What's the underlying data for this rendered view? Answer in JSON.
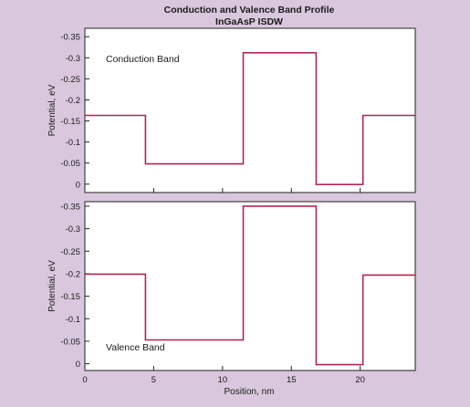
{
  "chart_data": {
    "type": "line",
    "title": "Conduction and Valence Band Profile",
    "subtitle": "InGaAsP ISDW",
    "xlabel": "Position, nm",
    "xlim": [
      0,
      24
    ],
    "x_ticks": [
      0,
      5,
      10,
      15,
      20
    ],
    "line_color": "#b0284f",
    "panels": [
      {
        "label": "Conduction Band",
        "ylabel": "Potential, eV",
        "ylim": [
          0.02,
          -0.37
        ],
        "y_ticks": [
          {
            "value": -0.35,
            "label": "-0.35"
          },
          {
            "value": -0.3,
            "label": "-0.3"
          },
          {
            "value": -0.25,
            "label": "-0.25"
          },
          {
            "value": -0.2,
            "label": "-0.2"
          },
          {
            "value": -0.15,
            "label": "-0.15"
          },
          {
            "value": -0.1,
            "label": "-0.1"
          },
          {
            "value": -0.05,
            "label": "-0.05"
          },
          {
            "value": 0,
            "label": "0"
          }
        ],
        "series": [
          {
            "x": [
              0,
              4.4,
              4.4,
              11.5,
              11.5,
              16.8,
              16.8,
              20.2,
              20.2,
              24
            ],
            "y": [
              -0.163,
              -0.163,
              -0.048,
              -0.048,
              -0.312,
              -0.312,
              0.001,
              0.001,
              -0.163,
              -0.163
            ]
          }
        ]
      },
      {
        "label": "Valence Band",
        "ylabel": "Potential, eV",
        "ylim": [
          0.015,
          -0.36
        ],
        "y_ticks": [
          {
            "value": 0,
            "label": "0"
          },
          {
            "value": -0.05,
            "label": "-0.05"
          },
          {
            "value": -0.1,
            "label": "-0.1"
          },
          {
            "value": -0.15,
            "label": "-0.15"
          },
          {
            "value": -0.2,
            "label": "-0.2"
          },
          {
            "value": -0.25,
            "label": "-0.25"
          },
          {
            "value": -0.3,
            "label": "-0.3"
          },
          {
            "value": -0.35,
            "label": "-0.35"
          }
        ],
        "series": [
          {
            "x": [
              0,
              4.4,
              4.4,
              11.5,
              11.5,
              16.8,
              16.8,
              20.2,
              20.2,
              24
            ],
            "y": [
              -0.199,
              -0.199,
              -0.053,
              -0.053,
              -0.35,
              -0.35,
              0.002,
              0.002,
              -0.197,
              -0.197
            ]
          }
        ]
      }
    ]
  }
}
